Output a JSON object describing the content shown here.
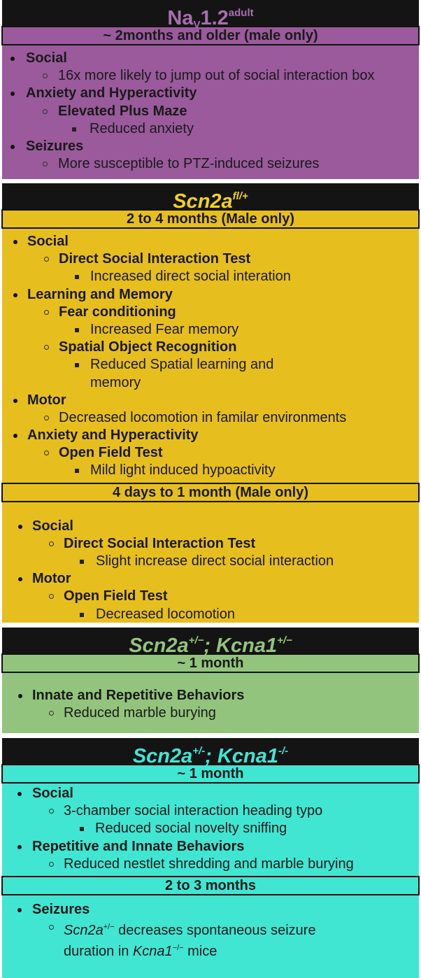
{
  "colors": {
    "purple": "#9a5a9c",
    "purple_title": "#a86fae",
    "yellow": "#e6be1e",
    "yellow_title": "#f2d21a",
    "green": "#93c47d",
    "green_title": "#93c47d",
    "cyan": "#40e6d2",
    "cyan_title": "#40e6d2"
  },
  "panels": [
    {
      "title_main": "Na",
      "title_sub": "V",
      "title_rest": "1.2",
      "title_sup": "adult",
      "italic": false,
      "sections": [
        {
          "age": "~ 2months and older (male only)",
          "items": [
            {
              "level": 1,
              "text": "Social"
            },
            {
              "level": 2,
              "text": "16x more likely to jump out of social interaction box"
            },
            {
              "level": 1,
              "text": "Anxiety and Hyperactivity"
            },
            {
              "level": "2b",
              "text": "Elevated Plus Maze"
            },
            {
              "level": 3,
              "text": "Reduced anxiety"
            },
            {
              "level": 1,
              "text": "Seizures"
            },
            {
              "level": 2,
              "text": "More susceptible to PTZ-induced seizures"
            }
          ]
        }
      ]
    },
    {
      "title_main": "Scn2a",
      "title_sup": "fl/+",
      "italic": true,
      "sections": [
        {
          "age": "2 to 4 months (Male only)",
          "items": [
            {
              "level": 1,
              "text": "Social"
            },
            {
              "level": "2b",
              "text": "Direct Social Interaction Test"
            },
            {
              "level": 3,
              "text": "Increased direct social interation"
            },
            {
              "level": 1,
              "text": "Learning and Memory"
            },
            {
              "level": "2b",
              "text": "Fear conditioning"
            },
            {
              "level": 3,
              "text": "Increased Fear memory"
            },
            {
              "level": "2b",
              "text": "Spatial Object Recognition"
            },
            {
              "level": 3,
              "text": "Reduced Spatial learning and memory",
              "wrap": true
            },
            {
              "level": 1,
              "text": "Motor"
            },
            {
              "level": 2,
              "text": "Decreased locomotion in familar environments"
            },
            {
              "level": 1,
              "text": "Anxiety and Hyperactivity"
            },
            {
              "level": "2b",
              "text": "Open Field Test"
            },
            {
              "level": 3,
              "text": "Mild light induced hypoactivity"
            }
          ]
        },
        {
          "age": "4 days to 1 month (Male only)",
          "items": [
            {
              "level": 1,
              "text": "Social"
            },
            {
              "level": "2b",
              "text": "Direct Social Interaction Test"
            },
            {
              "level": 3,
              "text": "Slight increase direct social interaction"
            },
            {
              "level": 1,
              "text": "Motor"
            },
            {
              "level": "2b",
              "text": "Open Field Test"
            },
            {
              "level": 3,
              "text": "Decreased locomotion"
            }
          ]
        }
      ]
    },
    {
      "title_main": "Scn2a",
      "title_sup": "+/−",
      "title_rest2": "; Kcna1",
      "title_sup2": "+/−",
      "italic": true,
      "sections": [
        {
          "age": "~ 1 month",
          "items": [
            {
              "level": 1,
              "text": "Innate and Repetitive Behaviors"
            },
            {
              "level": 2,
              "text": "Reduced marble burying"
            }
          ]
        }
      ]
    },
    {
      "title_main": "Scn2a",
      "title_sup": "+/-",
      "title_rest2": "; Kcna1",
      "title_sup2": "-/-",
      "italic": true,
      "sections": [
        {
          "age": "~ 1  month",
          "items": [
            {
              "level": 1,
              "text": "Social"
            },
            {
              "level": 2,
              "text": "3-chamber social interaction heading typo"
            },
            {
              "level": 3,
              "text": "Reduced social novelty sniffing"
            },
            {
              "level": 1,
              "text": "Repetitive and Innate Behaviors"
            },
            {
              "level": 2,
              "text": "Reduced nestlet shredding and marble burying"
            }
          ]
        },
        {
          "age": "2 to 3 months",
          "items": [
            {
              "level": 1,
              "text": "Seizures"
            },
            {
              "level": 2,
              "rich": [
                {
                  "t": "Scn2a",
                  "it": true
                },
                {
                  "t": "+/−",
                  "sup": true
                },
                {
                  "t": " decreases spontaneous seizure duration in "
                },
                {
                  "t": "Kcna1",
                  "it": true
                },
                {
                  "t": "−/−",
                  "sup": true
                },
                {
                  "t": " mice"
                }
              ],
              "wrap": true
            }
          ]
        }
      ]
    }
  ]
}
